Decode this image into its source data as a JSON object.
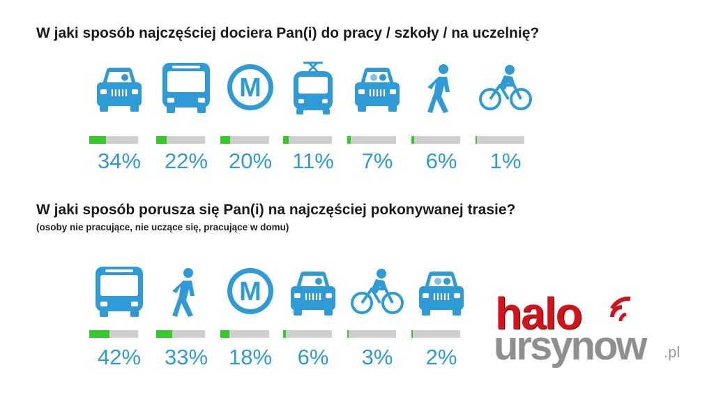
{
  "colors": {
    "accent": "#2e9bd6",
    "bar_fill": "#35c92b",
    "bar_track": "#cfcfcf",
    "title": "#1a1a1a",
    "logo_red": "#d3131a",
    "logo_grey": "#8f8f8f"
  },
  "q1": {
    "title": "W jaki sposób najczęściej dociera Pan(i) do pracy / szkoły / na uczelnię?"
  },
  "q2": {
    "title": "W jaki sposób porusza się Pan(i) na najczęściej pokonywanej trasie?",
    "subtitle": "(osoby nie pracujące, nie uczące się, pracujące w domu)"
  },
  "chart_data": [
    {
      "type": "bar",
      "title": "W jaki sposób najczęściej dociera Pan(i) do pracy / szkoły / na uczelnię?",
      "categories": [
        "car-driver",
        "bus",
        "metro",
        "tram",
        "car-passenger",
        "walking",
        "bicycle"
      ],
      "values": [
        34,
        22,
        20,
        11,
        7,
        6,
        1
      ],
      "labels": [
        "34%",
        "22%",
        "20%",
        "11%",
        "7%",
        "6%",
        "1%"
      ],
      "ylim": [
        0,
        100
      ]
    },
    {
      "type": "bar",
      "title": "W jaki sposób porusza się Pan(i) na najczęściej pokonywanej trasie?",
      "categories": [
        "bus",
        "walking",
        "metro",
        "car-driver",
        "bicycle",
        "car-passenger"
      ],
      "values": [
        42,
        33,
        18,
        6,
        3,
        2
      ],
      "labels": [
        "42%",
        "33%",
        "18%",
        "6%",
        "3%",
        "2%"
      ],
      "ylim": [
        0,
        100
      ]
    }
  ],
  "logo": {
    "halo": "halo",
    "ursynow": "ursynow",
    "pl": ".pl"
  }
}
